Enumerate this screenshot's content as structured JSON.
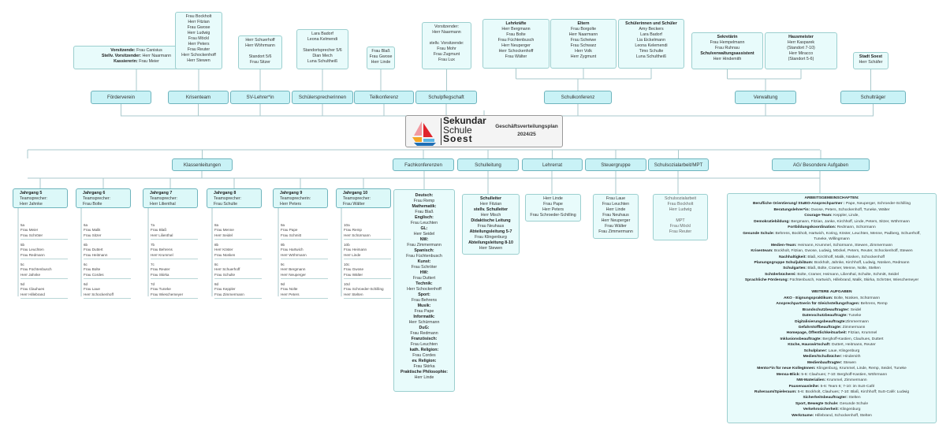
{
  "center": {
    "logo_line1": "Sekundar",
    "logo_line2": "Schule",
    "logo_line3": "Soest",
    "title": "Geschäftsverteilungsplan",
    "year": "2024/25"
  },
  "top": [
    {
      "label": "Förderverein",
      "boxes": [
        [
          [
            "Vorsitzende:",
            " Frau Canisius"
          ],
          [
            "Stellv. Vorsitzender:",
            " Herr Naarmann"
          ],
          [
            "Kassiererin:",
            " Frau Meier"
          ]
        ]
      ]
    },
    {
      "label": "Krisenteam",
      "boxes": [
        [
          [
            "",
            "Frau Bockholt"
          ],
          [
            "",
            "Herr Fitzian"
          ],
          [
            "",
            "Frau Gwose"
          ],
          [
            "",
            "Herr Ludwig"
          ],
          [
            "",
            "Frau Möckl"
          ],
          [
            "",
            "Herr Peters"
          ],
          [
            "",
            "Frau Reuter"
          ],
          [
            "",
            "Herr Schockenhoff"
          ],
          [
            "",
            "Herr Stewen"
          ]
        ]
      ]
    },
    {
      "label": "SV-Lehrer*in",
      "boxes": [
        [
          [
            "",
            "Herr Schuerhoff"
          ],
          [
            "",
            "Herr Wöhrmann"
          ],
          [
            "",
            ""
          ],
          [
            "",
            "Standort 5/6"
          ],
          [
            "",
            "Frau Sitzer"
          ]
        ]
      ]
    },
    {
      "label": "Schülersprecherinnen",
      "boxes": [
        [
          [
            "",
            "Lara Badorf"
          ],
          [
            "",
            "Leona Kelmendi"
          ],
          [
            "",
            ""
          ],
          [
            "",
            "Standortsprecher 5/6"
          ],
          [
            "",
            "Dian Mech"
          ],
          [
            "",
            "Luna Schultheiß"
          ]
        ]
      ]
    },
    {
      "label": "Teilkonferenz",
      "boxes": [
        [
          [
            "",
            "Frau Blaß"
          ],
          [
            "",
            "Frau Gwose"
          ],
          [
            "",
            "Herr Linde"
          ]
        ]
      ]
    },
    {
      "label": "Schulpflegschaft",
      "boxes": [
        [
          [
            "",
            "Vorsitzender:"
          ],
          [
            "",
            "Herr Naarmann"
          ],
          [
            "",
            ""
          ],
          [
            "",
            "stellv. Vorsitzende:"
          ],
          [
            "",
            "Frau Mohr"
          ],
          [
            "",
            "Frau Zugmunt"
          ],
          [
            "",
            "Frau Lux"
          ]
        ]
      ]
    },
    {
      "label": "Schulkonferenz",
      "boxes": [
        [
          [
            "Lehrkräfte",
            ""
          ],
          [
            "",
            "Herr Bergmann"
          ],
          [
            "",
            "Frau Bolte"
          ],
          [
            "",
            "Frau Füchtenbusch"
          ],
          [
            "",
            "Herr Neuperger"
          ],
          [
            "",
            "Herr Schockenhoff"
          ],
          [
            "",
            "Frau Wälter"
          ]
        ],
        [
          [
            "Eltern",
            ""
          ],
          [
            "",
            "Frau Borgolte"
          ],
          [
            "",
            "Herr Naarmann"
          ],
          [
            "",
            "Frau Scheiwe"
          ],
          [
            "",
            "Frau Schwarz"
          ],
          [
            "",
            "Herr Volk"
          ],
          [
            "",
            "Herr Zygmunt"
          ]
        ],
        [
          [
            "Schülerinnen und Schüler",
            ""
          ],
          [
            "",
            "Amy Beckers"
          ],
          [
            "",
            "Lara Badorf"
          ],
          [
            "",
            "Lia Eickelmann"
          ],
          [
            "",
            "Leona Kelemendi"
          ],
          [
            "",
            "Timo Schulte"
          ],
          [
            "",
            "Luna Schultheiß"
          ]
        ]
      ]
    },
    {
      "label": "Verwaltung",
      "boxes": [
        [
          [
            "Sekretärin",
            ""
          ],
          [
            "",
            "Frau Hempelmann"
          ],
          [
            "",
            "Frau Ruhnau"
          ],
          [
            "Schulverwaltungsassistent",
            ""
          ],
          [
            "",
            "Herr Hindemith"
          ]
        ],
        [
          [
            "Hausmeister",
            ""
          ],
          [
            "",
            "Herr Kasparek"
          ],
          [
            "",
            "(Standort 7-10)"
          ],
          [
            "",
            "Herr Miracco"
          ],
          [
            "",
            "(Standort 5-6)"
          ]
        ]
      ]
    },
    {
      "label": "Schulträger",
      "boxes": [
        [
          [
            "Stadt Soest",
            ""
          ],
          [
            "",
            "Herr Schäfer"
          ]
        ]
      ]
    }
  ],
  "bottom_labels": [
    "Klassenleitungen",
    "Fachkonferenzen",
    "Schulleitung",
    "Lehrerrat",
    "Steuergruppe",
    "Schulsozialarbeit/MPT",
    "AG/ Besondere Aufgaben"
  ],
  "jahrgaenge": [
    {
      "title": "Jahrgang 5",
      "role": "Teamsprecher:",
      "name": "Herr Jahnke",
      "classes": [
        [
          "5a",
          "Frau Meier",
          "Frau Schröter"
        ],
        [
          "5b",
          "Frau Leuchten",
          "Frau Redmann"
        ],
        [
          "5c",
          "Frau Füchtenbusch",
          "Herr Jahnke"
        ],
        [
          "5d",
          "Frau Clauhues",
          "Herr Hillebrand"
        ]
      ]
    },
    {
      "title": "Jahrgang 6",
      "role": "Teamsprecher:",
      "name": "Frau Bolte",
      "classes": [
        [
          "6a",
          "Frau Malik",
          "Frau Sitzer"
        ],
        [
          "6b",
          "Frau Duttert",
          "Frau Heitmann"
        ],
        [
          "6c",
          "Frau Bolte",
          "Frau Cordes"
        ],
        [
          "6d",
          "Frau Laue",
          "Herr Schockenhoff"
        ]
      ]
    },
    {
      "title": "Jahrgang 7",
      "role": "Teamsprecher:",
      "name": "Herr Lilienthal",
      "classes": [
        [
          "7a",
          "Frau Blaß",
          "Herr Lilienthal"
        ],
        [
          "7b",
          "Frau Behrens",
          "Herr Krummel"
        ],
        [
          "7c",
          "Frau Reuter",
          "Frau Skirka"
        ],
        [
          "7d",
          "Frau Tuneke",
          "Frau Wieschemeyer"
        ]
      ]
    },
    {
      "title": "Jahrgang 8",
      "role": "Teamsprecher:",
      "name": "Frau Schulte",
      "classes": [
        [
          "8a",
          "Frau Menne",
          "Herr Seidel"
        ],
        [
          "8b",
          "Herr Köster",
          "Frau Nüsken"
        ],
        [
          "8c",
          "Herr Schuerhoff",
          "Frau Schulte"
        ],
        [
          "8d",
          "Frau Keppler",
          "Frau Zimmermann"
        ]
      ]
    },
    {
      "title": "Jahrgang 9",
      "role": "Teamsprecherin:",
      "name": "Herr Peters",
      "classes": [
        [
          "9a",
          "Frau Pape",
          "Frau Schmitt"
        ],
        [
          "9b",
          "Frau Hartwich",
          "Herr Wöhrmann"
        ],
        [
          "9c",
          "Herr Bergmann",
          "Herr Neuperger"
        ],
        [
          "9d",
          "Frau Nolte",
          "Herr Peters"
        ]
      ]
    },
    {
      "title": "Jahrgang 10",
      "role": "Teamsprecher:",
      "name": "Frau Wälter",
      "classes": [
        [
          "10a",
          "Frau Remp",
          "Herr Schürmann"
        ],
        [
          "10b",
          "Frau Heimann",
          "Herr Linde"
        ],
        [
          "10c",
          "Frau Gwose",
          "Frau Wälter"
        ],
        [
          "10d",
          "Frau Schroeder-Schilling",
          "Herr Stelten"
        ]
      ]
    }
  ],
  "fachkonferenzen": [
    [
      "Deutsch:",
      "Frau Remp"
    ],
    [
      "Mathematik:",
      "Frau Blaß"
    ],
    [
      "Englisch:",
      "Frau Leuchten"
    ],
    [
      "GL:",
      "Herr Seidel"
    ],
    [
      "NW:",
      "Frau Zimmermann"
    ],
    [
      "Spanisch:",
      "Frau Füchtenbusch"
    ],
    [
      "Kunst:",
      "Frau Schröter"
    ],
    [
      "HW:",
      "Frau Duttert"
    ],
    [
      "Technik:",
      "Herr Schockenhoff"
    ],
    [
      "Sport:",
      "Frau Behrens"
    ],
    [
      "Musik:",
      "Frau Pape"
    ],
    [
      "Informatik:",
      "Herr Schürmann"
    ],
    [
      "DuG:",
      "Frau Redmann"
    ],
    [
      "Französisch:",
      "Frau Leuchten"
    ],
    [
      "kath. Religion:",
      "Frau Cordes"
    ],
    [
      "ev. Religion:",
      "Frau Skirka"
    ],
    [
      "Praktische Philosophie:",
      "Herr Linde"
    ]
  ],
  "schulleitung": [
    [
      "Schulleiter",
      ""
    ],
    [
      "",
      "Herr Fitzian"
    ],
    [
      "stellv. Schulleiter",
      ""
    ],
    [
      "",
      "Herr Misch"
    ],
    [
      "Didaktische Leitung",
      ""
    ],
    [
      "",
      "Frau Neuhaus"
    ],
    [
      "Abteilungsleitung 5-7",
      ""
    ],
    [
      "",
      "Frau Klingenburg"
    ],
    [
      "Abteilungsleitung 8-10",
      ""
    ],
    [
      "",
      "Herr Stewen"
    ]
  ],
  "lehrerrat": [
    "Herr Linde",
    "Frau Pape",
    "Herr Peters",
    "Frau Schroeder-Schilling"
  ],
  "steuergruppe": [
    "Frau Laue",
    "Frau Leuchten",
    "Herr Linde",
    "Frau Neuhaus",
    "Herr Neuperger",
    "Frau Wälter",
    "Frau Zimmermann"
  ],
  "schulsozialarbeit": [
    "Schulsozialarbeit",
    "Frau Bockholt",
    "Herr Ludwig",
    "",
    "MPT",
    "Frau Möckl",
    "Frau Reuter"
  ],
  "ag": [
    [
      "ARBEITSGEMEINSCHAFTEN:",
      ""
    ],
    [
      "Berufliche Orientierung/ StuBO-Ansprechpartner :",
      " Pape, Neuperger, Schroeder-Schilling"
    ],
    [
      "Beratungslehrer*in:",
      " Gwose, Peters, Schockenhoff, Tuneke, Wälter"
    ],
    [
      "Courage-Team:",
      " Keppler, Linde,"
    ],
    [
      "Demokratiebildung:",
      " Bergmann, Fitzian, Janke, Kirchhoff, Linde, Peters, Sitzer, Wöhrmann"
    ],
    [
      "Fortbildungskoordination:",
      " Redmann, Schürmann"
    ],
    [
      "Gesunde Schule:",
      " Behrens, Bockholt, Hartwich, Koring, Köster, Leuchten, Menne, Padberg, Schuerhoff,"
    ],
    [
      "",
      " Tuneke, Willingmann"
    ],
    [
      "Medien-Team:",
      " Heimann, Krummel, Schürmann, Stewen, Zimmermann"
    ],
    [
      "Krisenteam:",
      " Bockholt, Fitzian, Gwose, Ludwig, Möckel, Peters, Reuter, Schockenhoff, Stewen"
    ],
    [
      "Nachhaltigkeit:",
      " Blaß, Kirchhoff, Malik, Nüsken, Schockenhoff"
    ],
    [
      "Planungsgruppe Schuljubiläum:",
      " Bockholt, Jahnke, Kirchhoff, Ludwig, Nüsken, Redmann"
    ],
    [
      "Schulgarten:",
      " Blaß, Bolte, Cramer, Menne, Nolte, Stelten"
    ],
    [
      "Schülerbücherei:",
      " Bolte, Cramer, Heimann, Lilienthal, Schulte, Schmitt, Seidel"
    ],
    [
      "Sprachliche Förderung:",
      " Füchtenbusch, Hartwich, Hillebrand, Malik, Skirka, Schröter, Wieschemeyer"
    ],
    [
      "",
      ""
    ],
    [
      "WEITERE AUFGABEN",
      ""
    ],
    [
      "AKO - Eignungspraktikum:",
      " Bolte, Nüsken, Schürmann"
    ],
    [
      "Ansprechpartnerin für Gleichstellungsfragen:",
      " Behrens, Remp"
    ],
    [
      "Brandschutzbeauftragter:",
      " Seidel"
    ],
    [
      "Datenschutzbeauftragte:",
      " Tuneke"
    ],
    [
      "Digitalisierungsbeauftragte:",
      "Zimmermann"
    ],
    [
      "Gefahrstoffbeauftragte:",
      " Zimmermann"
    ],
    [
      "Homepage, Öffentlichkeitsarbeit:",
      " Fitzian, Krummel"
    ],
    [
      "Inklusionsbeauftragte:",
      " Berghoff-Kastien, Clauhues, Duttert"
    ],
    [
      "Küche, Hauswirtschaft:",
      " Duttert, Heitmann, Reuter"
    ],
    [
      "Schulplaner:",
      " Laue, Klingenburg"
    ],
    [
      "Medien/Schulbücher:",
      " Hindemith"
    ],
    [
      "Medienbauftragter:",
      " Stewen"
    ],
    [
      "Mentor*in für neue KollegInnen:",
      " Klingenburg, Krummel, Linde, Remp, Seidel, Tuneke"
    ],
    [
      "Mensa-Blick:",
      " 5-6: Clauhues; 7-10: Berghoff-Kastien, Wöhrmann"
    ],
    [
      "NW-Materialien:",
      " Krummel, Zimmermann"
    ],
    [
      "Pausenausleihe:",
      " 5-6: Team 6; 7-10: im SuS-Café"
    ],
    [
      "Ruheraum/Spieleraum:",
      " 5-6: Bockholt, Clauhues; 7-10: Blaß, Kirchhoff; SuS-Café: Ludwig"
    ],
    [
      "Sicherheitsbeauftragter:",
      " Stelten"
    ],
    [
      "Sport, Bewegte Schule:",
      " Gesunde Schule"
    ],
    [
      "Verkehrssicherheit:",
      " Klingenburg"
    ],
    [
      "Werkräume:",
      " Hillebrand, Schockenhoff, Stelten"
    ]
  ],
  "colors": {
    "box_fill": "#e8fbfb",
    "label_fill": "#c9f2f6",
    "border": "#6fb4bd",
    "line": "#a9c9cc"
  }
}
